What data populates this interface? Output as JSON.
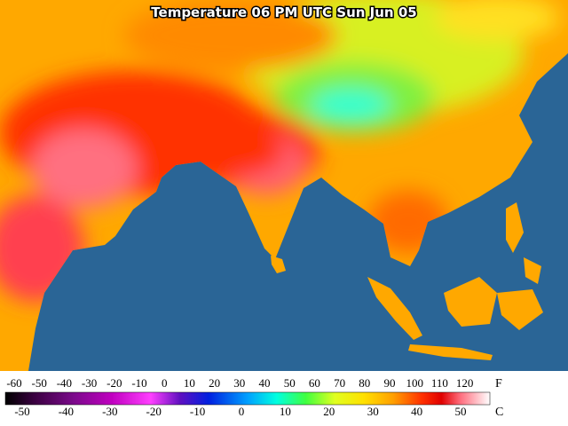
{
  "title": "Temperature 06 PM UTC Sun Jun 05",
  "scale": {
    "fahrenheit": {
      "unit": "F",
      "ticks": [
        -60,
        -50,
        -40,
        -30,
        -20,
        -10,
        0,
        10,
        20,
        30,
        40,
        50,
        60,
        70,
        80,
        90,
        100,
        110,
        120
      ]
    },
    "celsius": {
      "unit": "C",
      "ticks": [
        -50,
        -40,
        -30,
        -20,
        -10,
        0,
        10,
        20,
        30,
        40,
        50
      ]
    }
  }
}
